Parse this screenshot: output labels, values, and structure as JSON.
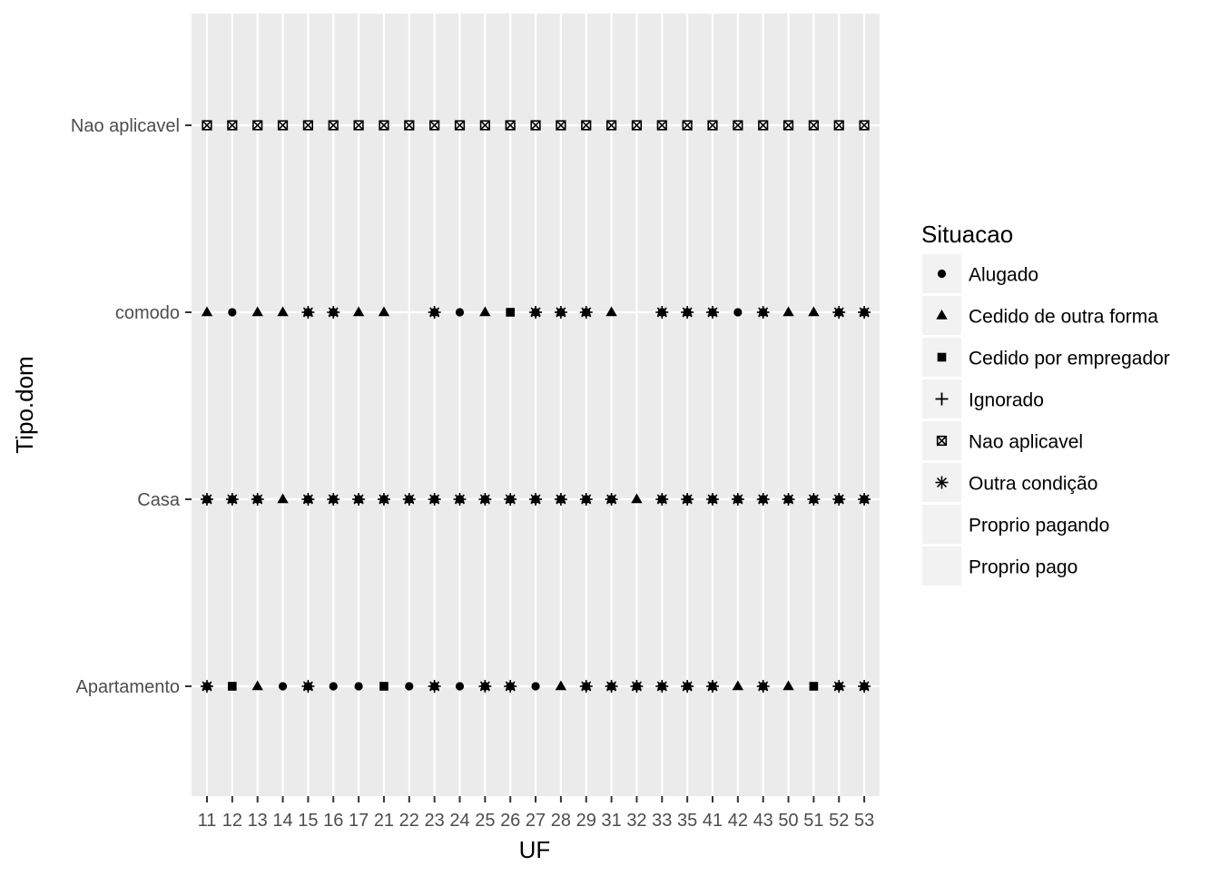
{
  "chart_data": {
    "type": "scatter",
    "xlabel": "UF",
    "ylabel": "Tipo.dom",
    "x_categories": [
      "11",
      "12",
      "13",
      "14",
      "15",
      "16",
      "17",
      "21",
      "22",
      "23",
      "24",
      "25",
      "26",
      "27",
      "28",
      "29",
      "31",
      "32",
      "33",
      "35",
      "41",
      "42",
      "43",
      "50",
      "51",
      "52",
      "53"
    ],
    "y_categories": [
      "Apartamento",
      "Casa",
      "comodo",
      "Nao aplicavel"
    ],
    "legend": {
      "title": "Situacao",
      "position": "right",
      "entries": [
        {
          "label": "Alugado",
          "shape": "circle"
        },
        {
          "label": "Cedido de outra forma",
          "shape": "triangle"
        },
        {
          "label": "Cedido por empregador",
          "shape": "square"
        },
        {
          "label": "Ignorado",
          "shape": "plus"
        },
        {
          "label": "Nao aplicavel",
          "shape": "square-cross"
        },
        {
          "label": "Outra condição",
          "shape": "asterisk"
        },
        {
          "label": "Proprio pagando",
          "shape": "none"
        },
        {
          "label": "Proprio pago",
          "shape": "none"
        }
      ]
    },
    "grid": true,
    "points": {
      "Apartamento": [
        "multi",
        "square",
        "triangle",
        "circle",
        "multi",
        "circle",
        "circle",
        "square",
        "circle",
        "multi",
        "circle",
        "multi",
        "multi",
        "circle",
        "triangle",
        "multi",
        "multi",
        "multi",
        "multi",
        "multi",
        "multi",
        "triangle",
        "multi",
        "triangle",
        "square",
        "multi",
        "multi"
      ],
      "Casa": [
        "multi",
        "multi",
        "multi",
        "triangle",
        "multi",
        "multi",
        "multi",
        "multi",
        "multi",
        "multi",
        "multi",
        "multi",
        "multi",
        "multi",
        "multi",
        "multi",
        "multi",
        "triangle",
        "multi",
        "multi",
        "multi",
        "multi",
        "multi",
        "multi",
        "multi",
        "multi",
        "multi"
      ],
      "comodo": [
        "triangle",
        "circle",
        "triangle",
        "triangle",
        "multi",
        "multi",
        "triangle",
        "triangle",
        null,
        "multi",
        "circle",
        "triangle",
        "square",
        "multi",
        "multi",
        "multi",
        "triangle",
        null,
        "multi",
        "multi",
        "multi",
        "circle",
        "multi",
        "triangle",
        "triangle",
        "multi",
        "multi"
      ],
      "Nao aplicavel": [
        "square-cross",
        "square-cross",
        "square-cross",
        "square-cross",
        "square-cross",
        "square-cross",
        "square-cross",
        "square-cross",
        "square-cross",
        "square-cross",
        "square-cross",
        "square-cross",
        "square-cross",
        "square-cross",
        "square-cross",
        "square-cross",
        "square-cross",
        "square-cross",
        "square-cross",
        "square-cross",
        "square-cross",
        "square-cross",
        "square-cross",
        "square-cross",
        "square-cross",
        "square-cross",
        "square-cross"
      ]
    },
    "colors": {
      "panel": "#ebebeb",
      "grid": "#ffffff",
      "point": "#000000",
      "key_bg": "#f2f2f2"
    }
  }
}
